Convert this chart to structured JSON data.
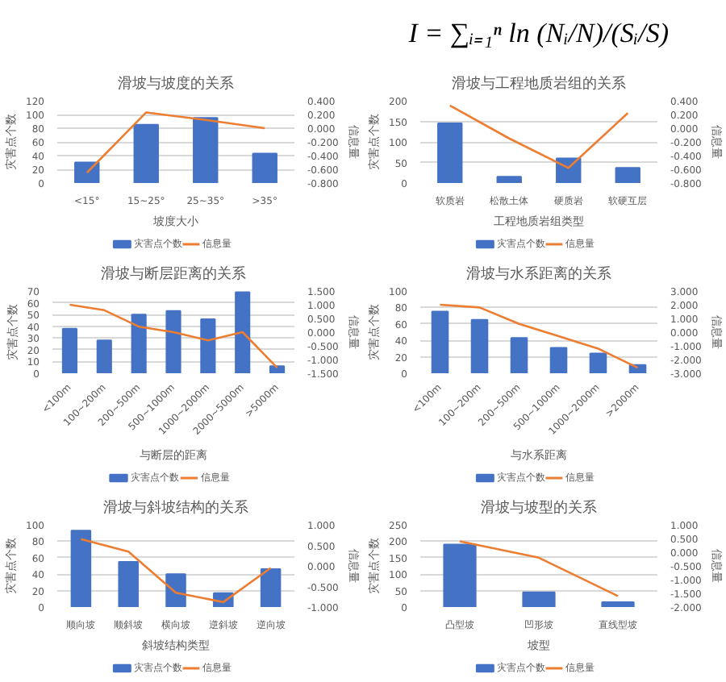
{
  "chart_data": [
    {
      "type": "bar",
      "title": "滑坡与坡度的关系",
      "annotations": [
        "I = ∑ᵢ₌₁ⁿ ln (Nᵢ/N)/(Sᵢ/S)"
      ],
      "xlabel": "坡度大小",
      "ylabel": "灾害点个数",
      "y2label": "信息量",
      "categories": [
        "<15°",
        "15~25°",
        "25~35°",
        ">35°"
      ],
      "series": [
        {
          "name": "灾害点个数",
          "color": "#4472c4",
          "values": [
            30,
            85,
            95,
            43
          ]
        },
        {
          "name": "信息量",
          "type": "line",
          "axis": "y2",
          "color": "#ed7d31",
          "values": [
            -0.65,
            0.23,
            0.12,
            0.0
          ]
        }
      ],
      "ylim": [
        0,
        120
      ],
      "yticks": [
        0,
        20,
        40,
        60,
        80,
        100,
        120
      ],
      "y2lim": [
        -0.8,
        0.4
      ],
      "y2ticks": [
        {
          "value": -0.8,
          "label": "-0.800"
        },
        {
          "value": -0.6,
          "label": "-0.600"
        },
        {
          "value": -0.4,
          "label": "-0.400"
        },
        {
          "value": -0.2,
          "label": "-0.200"
        },
        {
          "value": 0,
          "label": "0.000"
        },
        {
          "value": 0.2,
          "label": "0.200"
        },
        {
          "value": 0.4,
          "label": "0.400"
        }
      ],
      "grid": "y",
      "legend": "bottom"
    },
    {
      "type": "bar",
      "title": "滑坡与工程地质岩组的关系",
      "xlabel": "工程地质岩组类型",
      "ylabel": "灾害点个数",
      "y2label": "信息量",
      "categories": [
        "软质岩",
        "松散土体",
        "硬质岩",
        "软硬互层"
      ],
      "series": [
        {
          "name": "灾害点个数",
          "color": "#4472c4",
          "values": [
            145,
            15,
            60,
            37
          ]
        },
        {
          "name": "信息量",
          "type": "line",
          "axis": "y2",
          "color": "#ed7d31",
          "values": [
            0.33,
            -0.15,
            -0.58,
            0.22
          ]
        }
      ],
      "ylim": [
        0,
        200
      ],
      "yticks": [
        0,
        50,
        100,
        150,
        200
      ],
      "y2lim": [
        -0.8,
        0.4
      ],
      "y2ticks": [
        {
          "value": -0.8,
          "label": "-0.800"
        },
        {
          "value": -0.6,
          "label": "-0.600"
        },
        {
          "value": -0.4,
          "label": "-0.400"
        },
        {
          "value": -0.2,
          "label": "-0.200"
        },
        {
          "value": 0,
          "label": "0.000"
        },
        {
          "value": 0.2,
          "label": "0.200"
        },
        {
          "value": 0.4,
          "label": "0.400"
        }
      ],
      "grid": "y",
      "legend": "bottom"
    },
    {
      "type": "bar",
      "title": "滑坡与断层距离的关系",
      "xlabel": "与断层的距离",
      "ylabel": "灾害点个数",
      "y2label": "信息量",
      "categories": [
        "<100m",
        "100~200m",
        "200~500m",
        "500~1000m",
        "1000~2000m",
        "2000~5000m",
        ">5000m"
      ],
      "series": [
        {
          "name": "灾害点个数",
          "color": "#4472c4",
          "values": [
            38,
            28,
            50,
            53,
            46,
            69,
            6
          ]
        },
        {
          "name": "信息量",
          "type": "line",
          "axis": "y2",
          "color": "#ed7d31",
          "values": [
            1.0,
            0.8,
            0.2,
            0.0,
            -0.3,
            0.0,
            -1.3
          ]
        }
      ],
      "ylim": [
        0,
        70
      ],
      "yticks": [
        0,
        10,
        20,
        30,
        40,
        50,
        60,
        70
      ],
      "y2lim": [
        -1.5,
        1.5
      ],
      "y2ticks": [
        {
          "value": -1.5,
          "label": "-1.500"
        },
        {
          "value": -1,
          "label": "-1.000"
        },
        {
          "value": -0.5,
          "label": "-0.500"
        },
        {
          "value": 0,
          "label": "0.000"
        },
        {
          "value": 0.5,
          "label": "0.500"
        },
        {
          "value": 1,
          "label": "1.000"
        },
        {
          "value": 1.5,
          "label": "1.500"
        }
      ],
      "grid": "y",
      "legend": "bottom"
    },
    {
      "type": "bar",
      "title": "滑坡与水系距离的关系",
      "xlabel": "与水系距离",
      "ylabel": "灾害点个数",
      "y2label": "信息量",
      "categories": [
        "<100m",
        "100~200m",
        "200~500m",
        "500~1000m",
        "1000~2000m",
        ">2000m"
      ],
      "series": [
        {
          "name": "灾害点个数",
          "color": "#4472c4",
          "values": [
            75,
            65,
            43,
            31,
            24,
            10
          ]
        },
        {
          "name": "信息量",
          "type": "line",
          "axis": "y2",
          "color": "#ed7d31",
          "values": [
            2.0,
            1.8,
            0.6,
            -0.3,
            -1.2,
            -2.6
          ]
        }
      ],
      "ylim": [
        0,
        100
      ],
      "yticks": [
        0,
        20,
        40,
        60,
        80,
        100
      ],
      "y2lim": [
        -3,
        3
      ],
      "y2ticks": [
        {
          "value": -3,
          "label": "-3.000"
        },
        {
          "value": -2,
          "label": "-2.000"
        },
        {
          "value": -1,
          "label": "-1.000"
        },
        {
          "value": 0,
          "label": "0.000"
        },
        {
          "value": 1,
          "label": "1.000"
        },
        {
          "value": 2,
          "label": "2.000"
        },
        {
          "value": 3,
          "label": "3.000"
        }
      ],
      "grid": "y",
      "legend": "bottom"
    },
    {
      "type": "bar",
      "title": "滑坡与斜坡结构的关系",
      "xlabel": "斜坡结构类型",
      "ylabel": "灾害点个数",
      "y2label": "信息量",
      "categories": [
        "顺向坡",
        "顺斜坡",
        "横向坡",
        "逆斜坡",
        "逆向坡"
      ],
      "series": [
        {
          "name": "灾害点个数",
          "color": "#4472c4",
          "values": [
            93,
            55,
            40,
            17,
            46
          ]
        },
        {
          "name": "信息量",
          "type": "line",
          "axis": "y2",
          "color": "#ed7d31",
          "values": [
            0.65,
            0.35,
            -0.65,
            -0.88,
            -0.05
          ]
        }
      ],
      "ylim": [
        0,
        100
      ],
      "yticks": [
        0,
        20,
        40,
        60,
        80,
        100
      ],
      "y2lim": [
        -1,
        1
      ],
      "y2ticks": [
        {
          "value": -1,
          "label": "-1.000"
        },
        {
          "value": -0.5,
          "label": "-0.500"
        },
        {
          "value": 0,
          "label": "0.000"
        },
        {
          "value": 0.5,
          "label": "0.500"
        },
        {
          "value": 1,
          "label": "1.000"
        }
      ],
      "grid": "y",
      "legend": "bottom"
    },
    {
      "type": "bar",
      "title": "滑坡与坡型的关系",
      "xlabel": "坡型",
      "ylabel": "灾害点个数",
      "y2label": "信息量",
      "categories": [
        "凸型坡",
        "凹形坡",
        "直线型坡"
      ],
      "series": [
        {
          "name": "灾害点个数",
          "color": "#4472c4",
          "values": [
            190,
            45,
            15
          ]
        },
        {
          "name": "信息量",
          "type": "line",
          "axis": "y2",
          "color": "#ed7d31",
          "values": [
            0.4,
            -0.2,
            -1.6
          ]
        }
      ],
      "ylim": [
        0,
        250
      ],
      "yticks": [
        0,
        50,
        100,
        150,
        200,
        250
      ],
      "y2lim": [
        -2,
        1
      ],
      "y2ticks": [
        {
          "value": -2,
          "label": "-2.000"
        },
        {
          "value": -1.5,
          "label": "-1.500"
        },
        {
          "value": -1,
          "label": "-1.000"
        },
        {
          "value": -0.5,
          "label": "-0.500"
        },
        {
          "value": 0,
          "label": "0.000"
        },
        {
          "value": 0.5,
          "label": "0.500"
        },
        {
          "value": 1,
          "label": "1.000"
        }
      ],
      "grid": "y",
      "legend": "bottom"
    }
  ]
}
